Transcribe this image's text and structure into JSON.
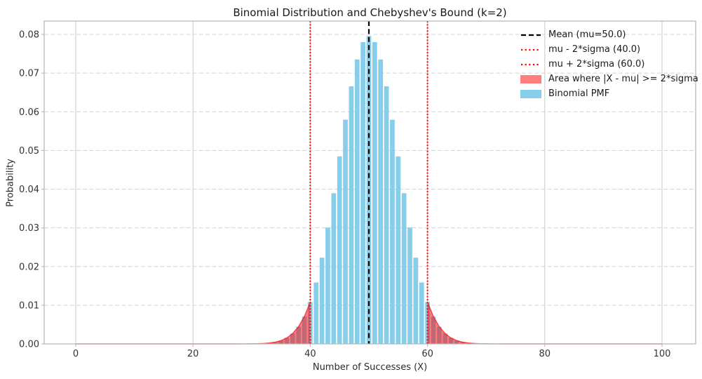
{
  "chart_data": {
    "type": "bar",
    "title": "Binomial Distribution and Chebyshev's Bound (k=2)",
    "xlabel": "Number of Successes (X)",
    "ylabel": "Probability",
    "x_ticks": [
      0,
      20,
      40,
      60,
      80,
      100
    ],
    "y_ticks": [
      "0.00",
      "0.01",
      "0.02",
      "0.03",
      "0.04",
      "0.05",
      "0.06",
      "0.07",
      "0.08"
    ],
    "xlim": [
      -5.38,
      105.74
    ],
    "ylim": [
      0,
      0.08345
    ],
    "grid": {
      "horizontal": "dashed",
      "vertical": "solid"
    },
    "legend_position": "upper right",
    "mean": 50.0,
    "sigma": 5.0,
    "k": 2,
    "lower_bound": 40.0,
    "upper_bound": 60.0,
    "bar_width": 0.8,
    "pmf_x_start": 25,
    "pmf": [
      2e-07,
      5.5e-07,
      1.5e-06,
      3.9e-06,
      9.8e-06,
      2.32e-05,
      5.23e-05,
      0.000113,
      0.000232,
      0.000458,
      0.000864,
      0.00156,
      0.002698,
      0.004473,
      0.007111,
      0.010844,
      0.01587,
      0.022294,
      0.030069,
      0.038953,
      0.048474,
      0.057958,
      0.06659,
      0.073527,
      0.078029,
      0.079589,
      0.078029,
      0.073527,
      0.06659,
      0.057958,
      0.048474,
      0.038953,
      0.030069,
      0.022294,
      0.01587,
      0.010844,
      0.007111,
      0.004473,
      0.002698,
      0.00156,
      0.000864,
      0.000458,
      0.000232,
      0.000113,
      5.23e-05,
      2.32e-05,
      9.8e-06,
      3.9e-06,
      1.5e-06,
      5.5e-07,
      2e-07
    ]
  },
  "legend": {
    "items": [
      {
        "label": "Mean (mu=50.0)",
        "kind": "dashed-line",
        "color": "#000000"
      },
      {
        "label": "mu - 2*sigma (40.0)",
        "kind": "dotted-line",
        "color": "#ff0000"
      },
      {
        "label": "mu + 2*sigma (60.0)",
        "kind": "dotted-line",
        "color": "#ff0000"
      },
      {
        "label": "Area where |X - mu| >= 2*sigma",
        "kind": "patch",
        "color": "rgba(255,0,0,0.5)"
      },
      {
        "label": "Binomial PMF",
        "kind": "patch",
        "color": "#87ceeb"
      }
    ]
  },
  "colors": {
    "bar": "#87ceeb",
    "tail_fill": "rgba(255,0,0,0.5)",
    "tail_edge": "rgba(255,0,0,0.65)",
    "mean_line": "#000000",
    "bound_line": "#ff0000",
    "grid_h": "#d4d4d4",
    "grid_v": "#c9c9c9",
    "spine": "#b9b9b9",
    "tick_text": "#333333"
  }
}
